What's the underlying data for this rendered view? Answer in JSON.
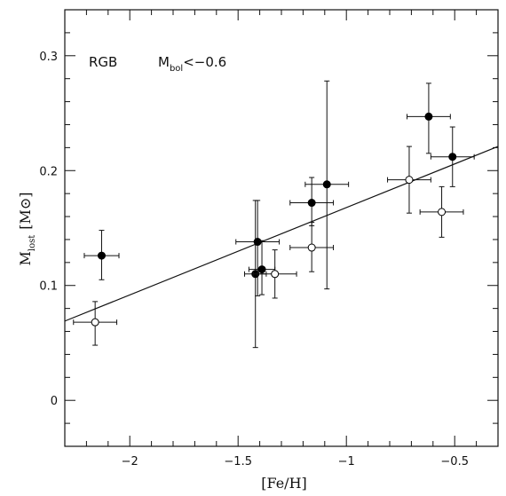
{
  "chart_data": {
    "type": "scatter",
    "xlabel": "[Fe/H]",
    "ylabel_main": "M",
    "ylabel_sub": "lost",
    "ylabel_unit": "[M⊙]",
    "xlim": [
      -2.3,
      -0.3
    ],
    "ylim": [
      -0.04,
      0.34
    ],
    "xticks": [
      -2,
      -1.5,
      -1,
      -0.5
    ],
    "xtick_labels": [
      "−2",
      "−1.5",
      "−1",
      "−0.5"
    ],
    "yticks": [
      0,
      0.1,
      0.2,
      0.3
    ],
    "ytick_labels": [
      "0",
      "0.1",
      "0.2",
      "0.3"
    ],
    "grid": false,
    "annotation": {
      "text": "RGB",
      "m": "M",
      "m_sub": "bol",
      "condition": "<−0.6"
    },
    "series": [
      {
        "marker": "filled-circle",
        "points": [
          {
            "x": -2.13,
            "y": 0.126,
            "xerr": 0.08,
            "yerr_low": 0.021,
            "yerr_high": 0.022
          },
          {
            "x": -1.42,
            "y": 0.11,
            "xerr": 0.05,
            "yerr_low": 0.064,
            "yerr_high": 0.064
          },
          {
            "x": -1.41,
            "y": 0.138,
            "xerr": 0.1,
            "yerr_low": 0.047,
            "yerr_high": 0.036
          },
          {
            "x": -1.39,
            "y": 0.114,
            "xerr": 0.06,
            "yerr_low": 0.022,
            "yerr_high": 0.025
          },
          {
            "x": -1.16,
            "y": 0.172,
            "xerr": 0.1,
            "yerr_low": 0.02,
            "yerr_high": 0.022
          },
          {
            "x": -1.09,
            "y": 0.188,
            "xerr": 0.1,
            "yerr_low": 0.091,
            "yerr_high": 0.09
          },
          {
            "x": -0.62,
            "y": 0.247,
            "xerr": 0.1,
            "yerr_low": 0.032,
            "yerr_high": 0.029
          },
          {
            "x": -0.51,
            "y": 0.212,
            "xerr": 0.1,
            "yerr_low": 0.026,
            "yerr_high": 0.026
          }
        ]
      },
      {
        "marker": "open-circle",
        "points": [
          {
            "x": -2.16,
            "y": 0.068,
            "xerr": 0.1,
            "yerr_low": 0.02,
            "yerr_high": 0.018
          },
          {
            "x": -1.33,
            "y": 0.11,
            "xerr": 0.1,
            "yerr_low": 0.021,
            "yerr_high": 0.021
          },
          {
            "x": -1.16,
            "y": 0.133,
            "xerr": 0.1,
            "yerr_low": 0.021,
            "yerr_high": 0.022
          },
          {
            "x": -0.71,
            "y": 0.192,
            "xerr": 0.1,
            "yerr_low": 0.029,
            "yerr_high": 0.029
          },
          {
            "x": -0.56,
            "y": 0.164,
            "xerr": 0.1,
            "yerr_low": 0.022,
            "yerr_high": 0.022
          }
        ]
      }
    ],
    "fit_line": {
      "x": [
        -2.3,
        -0.3
      ],
      "y": [
        0.069,
        0.221
      ]
    }
  }
}
